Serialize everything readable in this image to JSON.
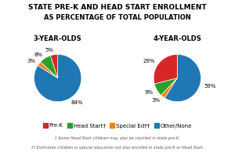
{
  "title": "STATE PRE-K AND HEAD START ENROLLMENT",
  "subtitle": "AS PERCENTAGE OF TOTAL POPULATION",
  "legend": "lower center",
  "annotations": [
    "† Some Head Start children may also be counted in state pre-K.",
    "†† Estimates children in special education not also enrolled in state pre-K or Head Start."
  ],
  "chart_data": [
    {
      "type": "pie",
      "title": "3-YEAR-OLDS",
      "categories": [
        "Other/None",
        "Special Ed††",
        "Head Start†",
        "Pre-K"
      ],
      "values": [
        84,
        3,
        8,
        5
      ],
      "value_labels": [
        "84%",
        "3%",
        "8%",
        "5%"
      ],
      "data_labels": true
    },
    {
      "type": "pie",
      "title": "4-YEAR-OLDS",
      "categories": [
        "Other/None",
        "Special Ed††",
        "Head Start†",
        "Pre-K"
      ],
      "values": [
        59,
        3,
        9,
        29
      ],
      "value_labels": [
        "59%",
        "3%",
        "9%",
        "29%"
      ],
      "data_labels": true
    }
  ]
}
